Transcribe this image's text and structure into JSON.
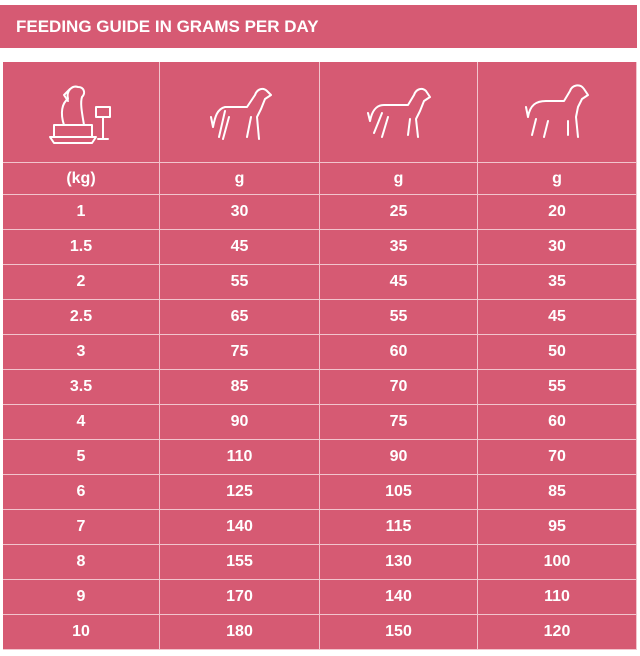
{
  "title": "FEEDING GUIDE IN GRAMS PER DAY",
  "table": {
    "units": [
      "(kg)",
      "g",
      "g",
      "g"
    ],
    "rows": [
      [
        "1",
        "30",
        "25",
        "20"
      ],
      [
        "1.5",
        "45",
        "35",
        "30"
      ],
      [
        "2",
        "55",
        "45",
        "35"
      ],
      [
        "2.5",
        "65",
        "55",
        "45"
      ],
      [
        "3",
        "75",
        "60",
        "50"
      ],
      [
        "3.5",
        "85",
        "70",
        "55"
      ],
      [
        "4",
        "90",
        "75",
        "60"
      ],
      [
        "5",
        "110",
        "90",
        "70"
      ],
      [
        "6",
        "125",
        "105",
        "85"
      ],
      [
        "7",
        "140",
        "115",
        "95"
      ],
      [
        "8",
        "155",
        "130",
        "100"
      ],
      [
        "9",
        "170",
        "140",
        "110"
      ],
      [
        "10",
        "180",
        "150",
        "120"
      ]
    ]
  }
}
